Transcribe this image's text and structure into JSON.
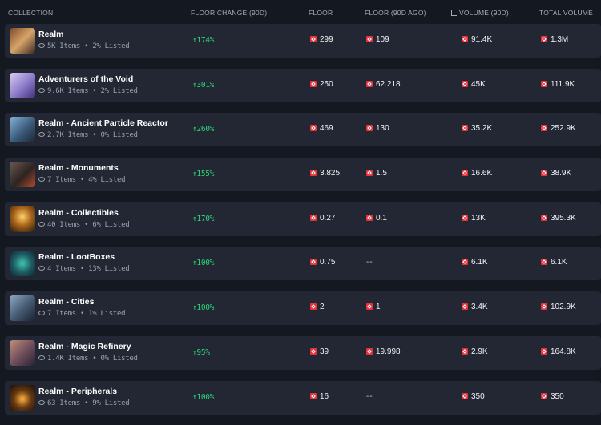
{
  "headers": {
    "collection": "COLLECTION",
    "floor_change": "FLOOR CHANGE (90D)",
    "floor": "FLOOR",
    "floor_90d": "FLOOR (90D AGO)",
    "volume": "VOLUME (90D)",
    "total_volume": "TOTAL VOLUME"
  },
  "colors": {
    "positive": "#2ed47a",
    "token": "#e5323b",
    "row_bg": "#222733",
    "page_bg": "#141821"
  },
  "rows": [
    {
      "name": "Realm",
      "meta": "5K Items • 2% Listed",
      "change": "↑174%",
      "floor": "299",
      "floor_90d": "109",
      "volume": "91.4K",
      "total_volume": "1.3M"
    },
    {
      "name": "Adventurers of the Void",
      "meta": "9.6K Items • 2% Listed",
      "change": "↑301%",
      "floor": "250",
      "floor_90d": "62.218",
      "volume": "45K",
      "total_volume": "111.9K"
    },
    {
      "name": "Realm - Ancient Particle Reactor",
      "meta": "2.7K Items • 0% Listed",
      "change": "↑260%",
      "floor": "469",
      "floor_90d": "130",
      "volume": "35.2K",
      "total_volume": "252.9K"
    },
    {
      "name": "Realm - Monuments",
      "meta": "7 Items • 4% Listed",
      "change": "↑155%",
      "floor": "3.825",
      "floor_90d": "1.5",
      "volume": "16.6K",
      "total_volume": "38.9K"
    },
    {
      "name": "Realm - Collectibles",
      "meta": "40 Items • 6% Listed",
      "change": "↑170%",
      "floor": "0.27",
      "floor_90d": "0.1",
      "volume": "13K",
      "total_volume": "395.3K"
    },
    {
      "name": "Realm - LootBoxes",
      "meta": "4 Items • 13% Listed",
      "change": "↑100%",
      "floor": "0.75",
      "floor_90d": "--",
      "volume": "6.1K",
      "total_volume": "6.1K"
    },
    {
      "name": "Realm - Cities",
      "meta": "7 Items • 1% Listed",
      "change": "↑100%",
      "floor": "2",
      "floor_90d": "1",
      "volume": "3.4K",
      "total_volume": "102.9K"
    },
    {
      "name": "Realm - Magic Refinery",
      "meta": "1.4K Items • 0% Listed",
      "change": "↑95%",
      "floor": "39",
      "floor_90d": "19.998",
      "volume": "2.9K",
      "total_volume": "164.8K"
    },
    {
      "name": "Realm - Peripherals",
      "meta": "63 Items • 9% Listed",
      "change": "↑100%",
      "floor": "16",
      "floor_90d": "--",
      "volume": "350",
      "total_volume": "350"
    }
  ]
}
